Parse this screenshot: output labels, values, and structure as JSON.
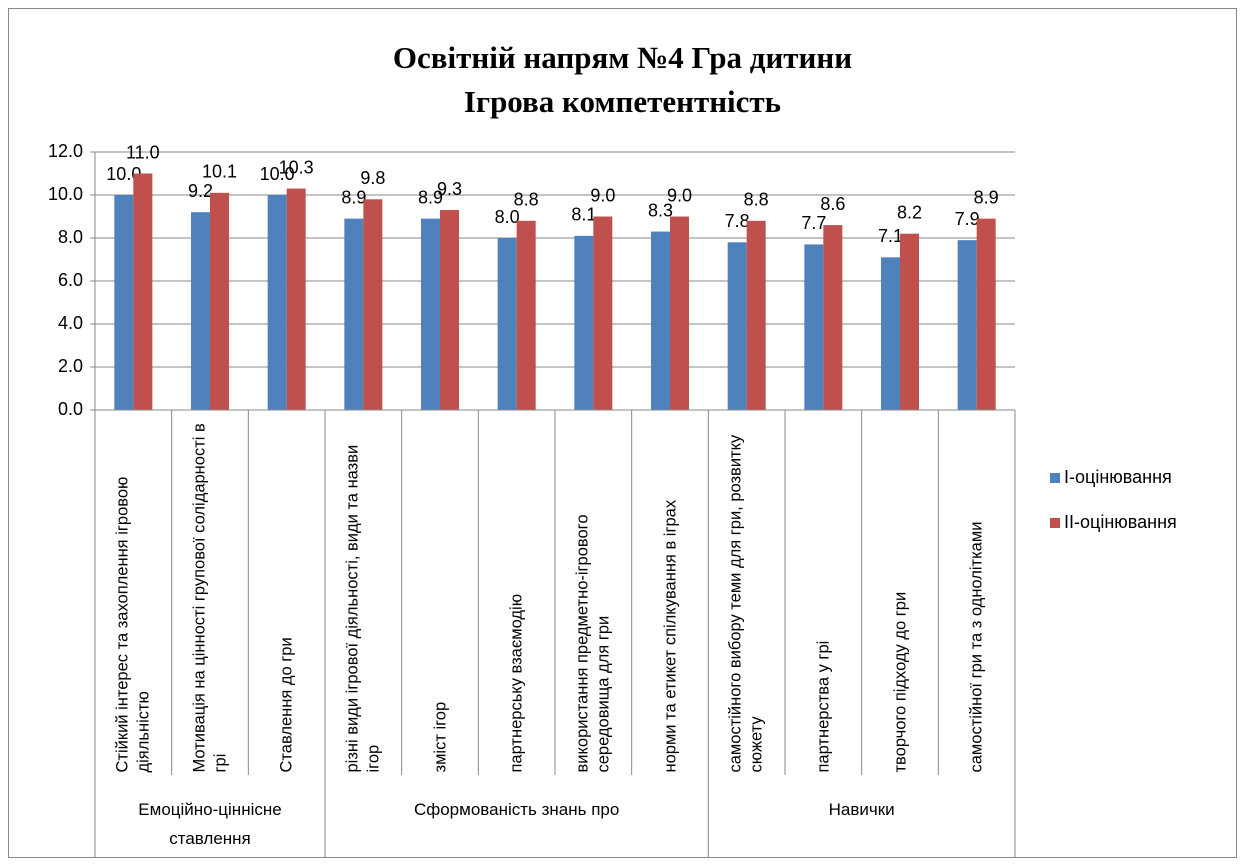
{
  "chart_data": {
    "type": "bar",
    "title": "Освітній напрям №4 Гра дитини\nІгрова компетентність",
    "categories": [
      "Стійкий інтерес та захоплення ігровою діяльністю",
      "Мотивація на цінності групової солідарності в грі",
      "Ставлення до гри",
      "різні види ігрової діяльності, види та назви ігор",
      "зміст ігор",
      "партнерську взаємодію",
      "використання предметно-ігрового середовища для гри",
      "норми та етикет спілкування в іграх",
      "самостійного вибору теми для гри, розвитку сюжету",
      "партнерства у грі",
      "творчого підходу до гри",
      "самостійної гри та з однолітками"
    ],
    "groups": [
      {
        "name": "Емоційно-ціннісне ставлення",
        "span": 3
      },
      {
        "name": "Сформованість знань про",
        "span": 5
      },
      {
        "name": "Навички",
        "span": 4
      }
    ],
    "series": [
      {
        "name": "I-оцінювання",
        "color": "#4f81bd",
        "values": [
          10.0,
          9.2,
          10.0,
          8.9,
          8.9,
          8.0,
          8.1,
          8.3,
          7.8,
          7.7,
          7.1,
          7.9
        ],
        "value_labels": [
          "10.0",
          "9.2",
          "10.0",
          "8.9",
          "8.9",
          "8.0",
          "8.1",
          "8.3",
          "7.8",
          "7.7",
          "7.1",
          "7.9"
        ]
      },
      {
        "name": "II-оцінювання",
        "color": "#c0504d",
        "values": [
          11.0,
          10.1,
          10.3,
          9.8,
          9.3,
          8.8,
          9.0,
          9.0,
          8.8,
          8.6,
          8.2,
          8.9
        ],
        "value_labels": [
          "11.0",
          "10.1",
          "10.3",
          "9.8",
          "9.3",
          "8.8",
          "9.0",
          "9.0",
          "8.8",
          "8.6",
          "8.2",
          "8.9"
        ]
      }
    ],
    "ylim": [
      0,
      12
    ],
    "yticks": [
      {
        "value": 0,
        "label": "0.0"
      },
      {
        "value": 2,
        "label": "2.0"
      },
      {
        "value": 4,
        "label": "4.0"
      },
      {
        "value": 6,
        "label": "6.0"
      },
      {
        "value": 8,
        "label": "8.0"
      },
      {
        "value": 10,
        "label": "10.0"
      },
      {
        "value": 12,
        "label": "12.0"
      }
    ],
    "grid": true,
    "legend": "right"
  }
}
